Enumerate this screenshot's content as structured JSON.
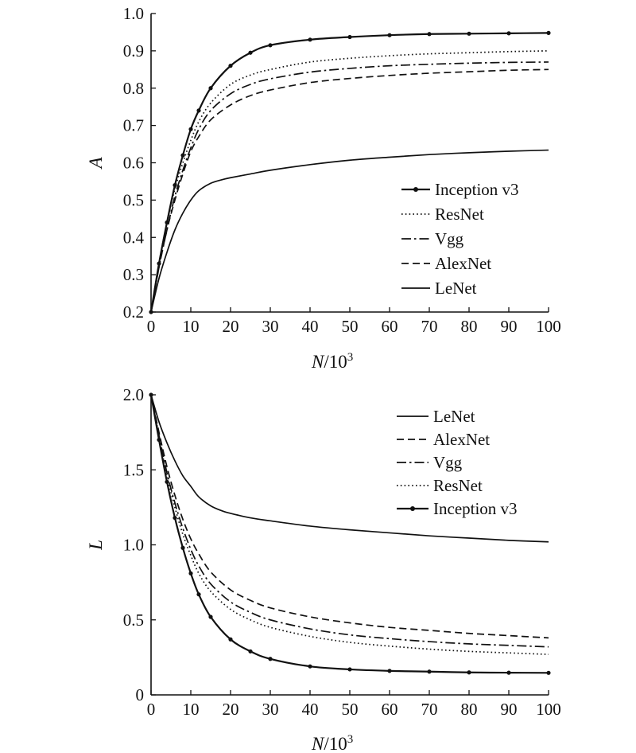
{
  "chart_data": [
    {
      "type": "line",
      "title": "",
      "xlabel": "N/10³",
      "xlabel_var": "N",
      "xlabel_unit": "/10",
      "xlabel_exp": "3",
      "ylabel": "A",
      "xlim": [
        0,
        100
      ],
      "ylim": [
        0.2,
        1.0
      ],
      "x_ticks": [
        0,
        10,
        20,
        30,
        40,
        50,
        60,
        70,
        80,
        90,
        100
      ],
      "x_tick_labels": [
        "0",
        "10",
        "20",
        "30",
        "40",
        "50",
        "60",
        "70",
        "80",
        "90",
        "100"
      ],
      "y_ticks": [
        0.2,
        0.3,
        0.4,
        0.5,
        0.6,
        0.7,
        0.8,
        0.9,
        1.0
      ],
      "y_tick_labels": [
        "0.2",
        "0.3",
        "0.4",
        "0.5",
        "0.6",
        "0.7",
        "0.8",
        "0.9",
        "1.0"
      ],
      "grid": false,
      "legend_position": "right",
      "legend_order": [
        "Inception v3",
        "ResNet",
        "Vgg",
        "AlexNet",
        "LeNet"
      ],
      "series": [
        {
          "name": "Inception v3",
          "style": "solid-dot",
          "x": [
            0,
            2,
            4,
            6,
            8,
            10,
            12,
            15,
            20,
            25,
            30,
            40,
            50,
            60,
            70,
            80,
            90,
            100
          ],
          "values": [
            0.2,
            0.33,
            0.44,
            0.54,
            0.62,
            0.69,
            0.74,
            0.8,
            0.86,
            0.895,
            0.915,
            0.93,
            0.937,
            0.942,
            0.945,
            0.946,
            0.947,
            0.948
          ]
        },
        {
          "name": "ResNet",
          "style": "dotted",
          "x": [
            0,
            2,
            4,
            6,
            8,
            10,
            12,
            15,
            20,
            25,
            30,
            40,
            50,
            60,
            70,
            80,
            90,
            100
          ],
          "values": [
            0.2,
            0.33,
            0.44,
            0.53,
            0.6,
            0.66,
            0.71,
            0.76,
            0.81,
            0.835,
            0.85,
            0.87,
            0.88,
            0.887,
            0.892,
            0.895,
            0.898,
            0.9
          ]
        },
        {
          "name": "Vgg",
          "style": "dash-dot",
          "x": [
            0,
            2,
            4,
            6,
            8,
            10,
            12,
            15,
            20,
            25,
            30,
            40,
            50,
            60,
            70,
            80,
            90,
            100
          ],
          "values": [
            0.2,
            0.32,
            0.42,
            0.51,
            0.58,
            0.64,
            0.69,
            0.74,
            0.785,
            0.81,
            0.825,
            0.843,
            0.853,
            0.86,
            0.864,
            0.867,
            0.869,
            0.87
          ]
        },
        {
          "name": "AlexNet",
          "style": "dashed",
          "x": [
            0,
            2,
            4,
            6,
            8,
            10,
            12,
            15,
            20,
            25,
            30,
            40,
            50,
            60,
            70,
            80,
            90,
            100
          ],
          "values": [
            0.2,
            0.32,
            0.42,
            0.5,
            0.57,
            0.63,
            0.67,
            0.715,
            0.755,
            0.78,
            0.795,
            0.815,
            0.826,
            0.834,
            0.84,
            0.844,
            0.848,
            0.85
          ]
        },
        {
          "name": "LeNet",
          "style": "solid",
          "x": [
            0,
            2,
            4,
            6,
            8,
            10,
            12,
            15,
            18,
            20,
            25,
            30,
            40,
            50,
            60,
            70,
            80,
            90,
            100
          ],
          "values": [
            0.2,
            0.29,
            0.36,
            0.42,
            0.465,
            0.5,
            0.525,
            0.545,
            0.555,
            0.56,
            0.57,
            0.58,
            0.595,
            0.607,
            0.615,
            0.622,
            0.627,
            0.631,
            0.634
          ]
        }
      ]
    },
    {
      "type": "line",
      "title": "",
      "xlabel": "N/10³",
      "xlabel_var": "N",
      "xlabel_unit": "/10",
      "xlabel_exp": "3",
      "ylabel": "L",
      "xlim": [
        0,
        100
      ],
      "ylim": [
        0,
        2.0
      ],
      "x_ticks": [
        0,
        10,
        20,
        30,
        40,
        50,
        60,
        70,
        80,
        90,
        100
      ],
      "x_tick_labels": [
        "0",
        "10",
        "20",
        "30",
        "40",
        "50",
        "60",
        "70",
        "80",
        "90",
        "100"
      ],
      "y_ticks": [
        0,
        0.5,
        1.0,
        1.5,
        2.0
      ],
      "y_tick_labels": [
        "0",
        "0.5",
        "1.0",
        "1.5",
        "2.0"
      ],
      "grid": false,
      "legend_position": "top-right",
      "legend_order": [
        "LeNet",
        "AlexNet",
        "Vgg",
        "ResNet",
        "Inception v3"
      ],
      "series": [
        {
          "name": "LeNet",
          "style": "solid",
          "x": [
            0,
            2,
            4,
            6,
            8,
            10,
            12,
            15,
            18,
            20,
            25,
            30,
            40,
            50,
            60,
            70,
            80,
            90,
            100
          ],
          "values": [
            2.0,
            1.82,
            1.68,
            1.56,
            1.46,
            1.39,
            1.32,
            1.26,
            1.225,
            1.21,
            1.18,
            1.16,
            1.125,
            1.1,
            1.08,
            1.06,
            1.045,
            1.03,
            1.02
          ]
        },
        {
          "name": "AlexNet",
          "style": "dashed",
          "x": [
            0,
            2,
            4,
            6,
            8,
            10,
            12,
            15,
            20,
            25,
            30,
            40,
            50,
            60,
            70,
            80,
            90,
            100
          ],
          "values": [
            2.0,
            1.75,
            1.52,
            1.33,
            1.17,
            1.04,
            0.94,
            0.82,
            0.7,
            0.63,
            0.58,
            0.52,
            0.48,
            0.45,
            0.43,
            0.41,
            0.395,
            0.38
          ]
        },
        {
          "name": "Vgg",
          "style": "dash-dot",
          "x": [
            0,
            2,
            4,
            6,
            8,
            10,
            12,
            15,
            20,
            25,
            30,
            40,
            50,
            60,
            70,
            80,
            90,
            100
          ],
          "values": [
            2.0,
            1.73,
            1.48,
            1.28,
            1.11,
            0.97,
            0.86,
            0.74,
            0.62,
            0.55,
            0.5,
            0.44,
            0.4,
            0.375,
            0.355,
            0.34,
            0.33,
            0.32
          ]
        },
        {
          "name": "ResNet",
          "style": "dotted",
          "x": [
            0,
            2,
            4,
            6,
            8,
            10,
            12,
            15,
            20,
            25,
            30,
            40,
            50,
            60,
            70,
            80,
            90,
            100
          ],
          "values": [
            2.0,
            1.72,
            1.46,
            1.25,
            1.07,
            0.93,
            0.81,
            0.69,
            0.57,
            0.5,
            0.45,
            0.39,
            0.35,
            0.325,
            0.305,
            0.29,
            0.28,
            0.27
          ]
        },
        {
          "name": "Inception v3",
          "style": "solid-dot",
          "x": [
            0,
            2,
            4,
            6,
            8,
            10,
            12,
            15,
            20,
            25,
            30,
            40,
            50,
            60,
            70,
            80,
            90,
            100
          ],
          "values": [
            2.0,
            1.7,
            1.42,
            1.18,
            0.98,
            0.81,
            0.67,
            0.52,
            0.37,
            0.29,
            0.24,
            0.19,
            0.17,
            0.16,
            0.155,
            0.15,
            0.148,
            0.147
          ]
        }
      ]
    }
  ]
}
